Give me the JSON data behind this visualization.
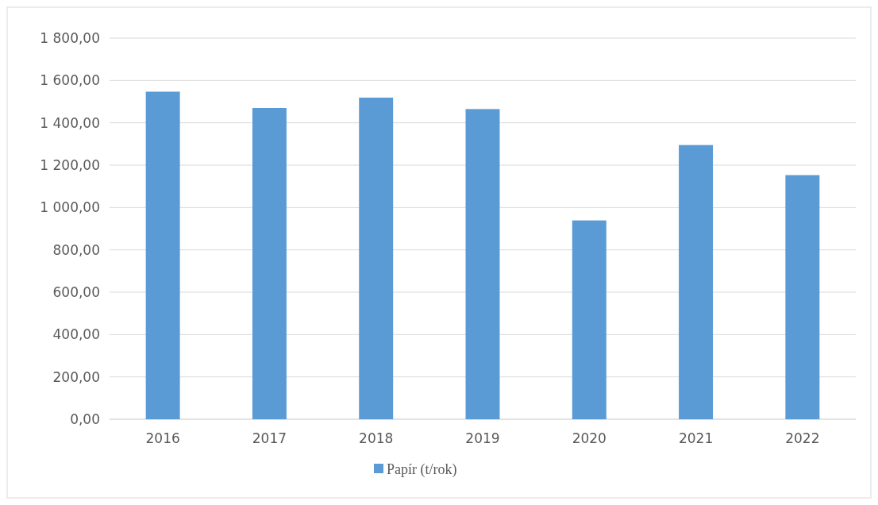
{
  "chart_data": {
    "type": "bar",
    "categories": [
      "2016",
      "2017",
      "2018",
      "2019",
      "2020",
      "2021",
      "2022"
    ],
    "series": [
      {
        "name": "Papír (t/rok)",
        "color": "#5b9bd5",
        "values": [
          1547,
          1470,
          1519,
          1465,
          939,
          1295,
          1153
        ]
      }
    ],
    "ylim": [
      0,
      1800
    ],
    "yticks": [
      {
        "value": 0,
        "label": "0,00"
      },
      {
        "value": 200,
        "label": "200,00"
      },
      {
        "value": 400,
        "label": "400,00"
      },
      {
        "value": 600,
        "label": "600,00"
      },
      {
        "value": 800,
        "label": "800,00"
      },
      {
        "value": 1000,
        "label": "1 000,00"
      },
      {
        "value": 1200,
        "label": "1 200,00"
      },
      {
        "value": 1400,
        "label": "1 400,00"
      },
      {
        "value": 1600,
        "label": "1 600,00"
      },
      {
        "value": 1800,
        "label": "1 800,00"
      }
    ],
    "grid": "y",
    "legend": "bottom"
  }
}
